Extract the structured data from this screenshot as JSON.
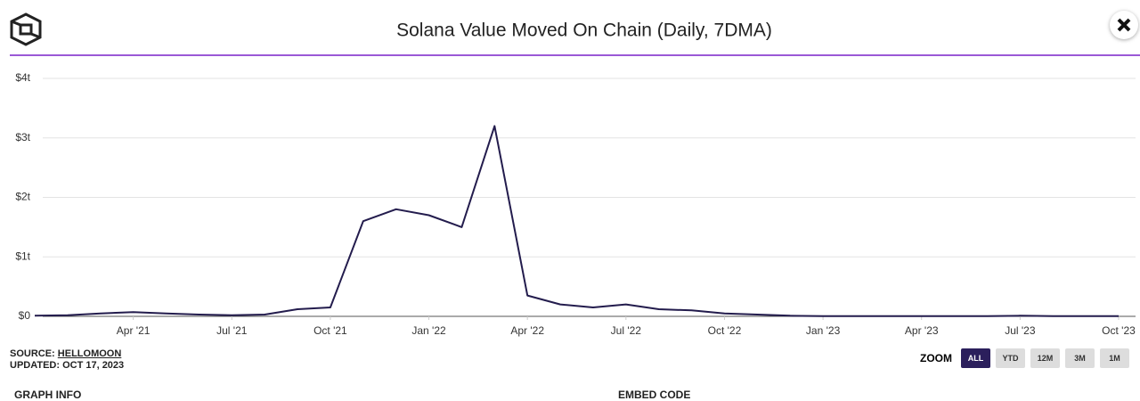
{
  "chart_data": {
    "type": "line",
    "title": "Solana Value Moved On Chain (Daily, 7DMA)",
    "x": [
      "2021-01",
      "2021-02",
      "2021-03",
      "2021-04",
      "2021-05",
      "2021-06",
      "2021-07",
      "2021-08",
      "2021-09",
      "2021-10",
      "2021-11",
      "2021-12",
      "2022-01",
      "2022-02",
      "2022-03",
      "2022-04",
      "2022-05",
      "2022-06",
      "2022-07",
      "2022-08",
      "2022-09",
      "2022-10",
      "2022-11",
      "2022-12",
      "2023-01",
      "2023-02",
      "2023-03",
      "2023-04",
      "2023-05",
      "2023-06",
      "2023-07",
      "2023-08",
      "2023-09",
      "2023-10"
    ],
    "values": [
      0.01,
      0.02,
      0.05,
      0.07,
      0.05,
      0.03,
      0.02,
      0.03,
      0.12,
      0.15,
      1.6,
      1.8,
      1.7,
      1.5,
      3.2,
      0.35,
      0.2,
      0.15,
      0.2,
      0.12,
      0.1,
      0.05,
      0.03,
      0.01,
      0.005,
      0.005,
      0.005,
      0.005,
      0.005,
      0.005,
      0.01,
      0.005,
      0.005,
      0.005
    ],
    "color": "#231c4d",
    "xlim": [
      "2021-01",
      "2023-10"
    ],
    "xticks": [
      {
        "value": "2021-04",
        "label": "Apr '21"
      },
      {
        "value": "2021-07",
        "label": "Jul '21"
      },
      {
        "value": "2021-10",
        "label": "Oct '21"
      },
      {
        "value": "2022-01",
        "label": "Jan '22"
      },
      {
        "value": "2022-04",
        "label": "Apr '22"
      },
      {
        "value": "2022-07",
        "label": "Jul '22"
      },
      {
        "value": "2022-10",
        "label": "Oct '22"
      },
      {
        "value": "2023-01",
        "label": "Jan '23"
      },
      {
        "value": "2023-04",
        "label": "Apr '23"
      },
      {
        "value": "2023-07",
        "label": "Jul '23"
      },
      {
        "value": "2023-10",
        "label": "Oct '23"
      }
    ],
    "ylim": [
      0,
      4
    ],
    "yticks": [
      {
        "value": 0,
        "label": "$0"
      },
      {
        "value": 1,
        "label": "$1t"
      },
      {
        "value": 2,
        "label": "$2t"
      },
      {
        "value": 3,
        "label": "$3t"
      },
      {
        "value": 4,
        "label": "$4t"
      }
    ],
    "grid": true
  },
  "source_label": "SOURCE:",
  "source": "HELLOMOON",
  "updated": "UPDATED: OCT 17, 2023",
  "zoom_label": "ZOOM",
  "zoom_buttons": [
    "ALL",
    "YTD",
    "12M",
    "3M",
    "1M"
  ],
  "tabs": [
    "GRAPH INFO",
    "EMBED CODE"
  ]
}
